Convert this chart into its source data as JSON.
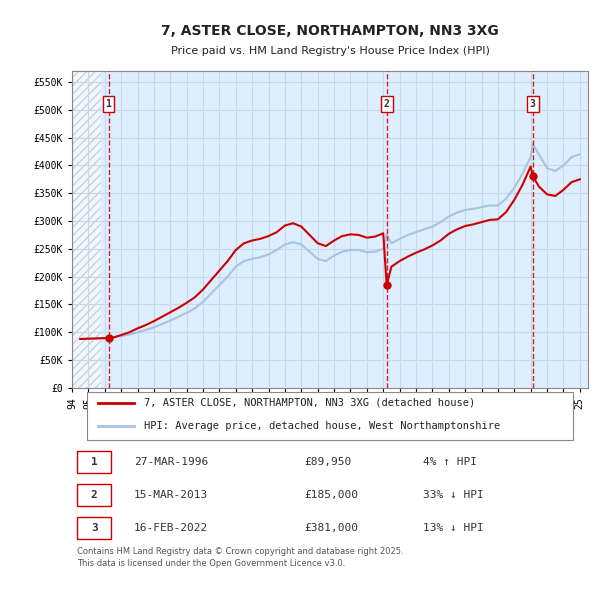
{
  "title": "7, ASTER CLOSE, NORTHAMPTON, NN3 3XG",
  "subtitle": "Price paid vs. HM Land Registry's House Price Index (HPI)",
  "ylim": [
    0,
    570000
  ],
  "yticks": [
    0,
    50000,
    100000,
    150000,
    200000,
    250000,
    300000,
    350000,
    400000,
    450000,
    500000,
    550000
  ],
  "ytick_labels": [
    "£0",
    "£50K",
    "£100K",
    "£150K",
    "£200K",
    "£250K",
    "£300K",
    "£350K",
    "£400K",
    "£450K",
    "£500K",
    "£550K"
  ],
  "hpi_color": "#a8c4e0",
  "price_color": "#cc0000",
  "sale_color": "#cc0000",
  "grid_color": "#c8d8e8",
  "bg_color": "#ddeeff",
  "hatch_color": "#c0c8d0",
  "legend_entry1": "7, ASTER CLOSE, NORTHAMPTON, NN3 3XG (detached house)",
  "legend_entry2": "HPI: Average price, detached house, West Northamptonshire",
  "footer": "Contains HM Land Registry data © Crown copyright and database right 2025.\nThis data is licensed under the Open Government Licence v3.0.",
  "transactions": [
    {
      "num": 1,
      "date": "27-MAR-1996",
      "price": 89950,
      "pct": "4%",
      "dir": "↑",
      "x_year": 1996.23
    },
    {
      "num": 2,
      "date": "15-MAR-2013",
      "price": 185000,
      "pct": "33%",
      "dir": "↓",
      "x_year": 2013.21
    },
    {
      "num": 3,
      "date": "16-FEB-2022",
      "price": 381000,
      "pct": "13%",
      "dir": "↓",
      "x_year": 2022.13
    }
  ],
  "hpi_data": {
    "years": [
      1994.5,
      1995.0,
      1995.5,
      1996.0,
      1996.23,
      1996.5,
      1997.0,
      1997.5,
      1998.0,
      1998.5,
      1999.0,
      1999.5,
      2000.0,
      2000.5,
      2001.0,
      2001.5,
      2002.0,
      2002.5,
      2003.0,
      2003.5,
      2004.0,
      2004.5,
      2005.0,
      2005.5,
      2006.0,
      2006.5,
      2007.0,
      2007.5,
      2008.0,
      2008.5,
      2009.0,
      2009.5,
      2010.0,
      2010.5,
      2011.0,
      2011.5,
      2012.0,
      2012.5,
      2013.0,
      2013.21,
      2013.5,
      2014.0,
      2014.5,
      2015.0,
      2015.5,
      2016.0,
      2016.5,
      2017.0,
      2017.5,
      2018.0,
      2018.5,
      2019.0,
      2019.5,
      2020.0,
      2020.5,
      2021.0,
      2021.5,
      2022.0,
      2022.13,
      2022.5,
      2023.0,
      2023.5,
      2024.0,
      2024.5,
      2025.0
    ],
    "values": [
      88000,
      88500,
      89000,
      89500,
      86500,
      90500,
      93000,
      96000,
      100000,
      104000,
      109000,
      115000,
      121000,
      128000,
      135000,
      143000,
      155000,
      170000,
      185000,
      200000,
      218000,
      228000,
      232000,
      235000,
      240000,
      248000,
      258000,
      262000,
      258000,
      245000,
      232000,
      228000,
      238000,
      245000,
      248000,
      248000,
      244000,
      245000,
      250000,
      276000,
      260000,
      268000,
      275000,
      280000,
      285000,
      290000,
      298000,
      308000,
      315000,
      320000,
      322000,
      325000,
      328000,
      328000,
      340000,
      360000,
      385000,
      415000,
      438000,
      420000,
      395000,
      390000,
      400000,
      415000,
      420000
    ]
  },
  "price_data": {
    "years": [
      1994.5,
      1995.0,
      1995.5,
      1996.0,
      1996.23,
      1996.5,
      1997.0,
      1997.5,
      1998.0,
      1998.5,
      1999.0,
      1999.5,
      2000.0,
      2000.5,
      2001.0,
      2001.5,
      2002.0,
      2002.5,
      2003.0,
      2003.5,
      2004.0,
      2004.5,
      2005.0,
      2005.5,
      2006.0,
      2006.5,
      2007.0,
      2007.5,
      2008.0,
      2008.5,
      2009.0,
      2009.5,
      2010.0,
      2010.5,
      2011.0,
      2011.5,
      2012.0,
      2012.5,
      2013.0,
      2013.21,
      2013.5,
      2014.0,
      2014.5,
      2015.0,
      2015.5,
      2016.0,
      2016.5,
      2017.0,
      2017.5,
      2018.0,
      2018.5,
      2019.0,
      2019.5,
      2020.0,
      2020.5,
      2021.0,
      2021.5,
      2022.0,
      2022.13,
      2022.5,
      2023.0,
      2023.5,
      2024.0,
      2024.5,
      2025.0
    ],
    "values": [
      88000,
      88500,
      89000,
      89500,
      89950,
      90500,
      95000,
      100000,
      107000,
      113000,
      120000,
      128000,
      136000,
      144000,
      153000,
      163000,
      177000,
      194000,
      211000,
      228000,
      248000,
      260000,
      265000,
      268000,
      273000,
      280000,
      292000,
      296000,
      290000,
      275000,
      260000,
      255000,
      265000,
      273000,
      276000,
      275000,
      270000,
      272000,
      278000,
      185000,
      218000,
      228000,
      236000,
      243000,
      249000,
      256000,
      265000,
      277000,
      285000,
      291000,
      294000,
      298000,
      302000,
      303000,
      316000,
      338000,
      365000,
      398000,
      381000,
      362000,
      348000,
      345000,
      356000,
      370000,
      375000
    ]
  },
  "xlim": [
    1994.0,
    2025.5
  ],
  "xticks": [
    1994,
    1995,
    1996,
    1997,
    1998,
    1999,
    2000,
    2001,
    2002,
    2003,
    2004,
    2005,
    2006,
    2007,
    2008,
    2009,
    2010,
    2011,
    2012,
    2013,
    2014,
    2015,
    2016,
    2017,
    2018,
    2019,
    2020,
    2021,
    2022,
    2023,
    2024,
    2025
  ]
}
